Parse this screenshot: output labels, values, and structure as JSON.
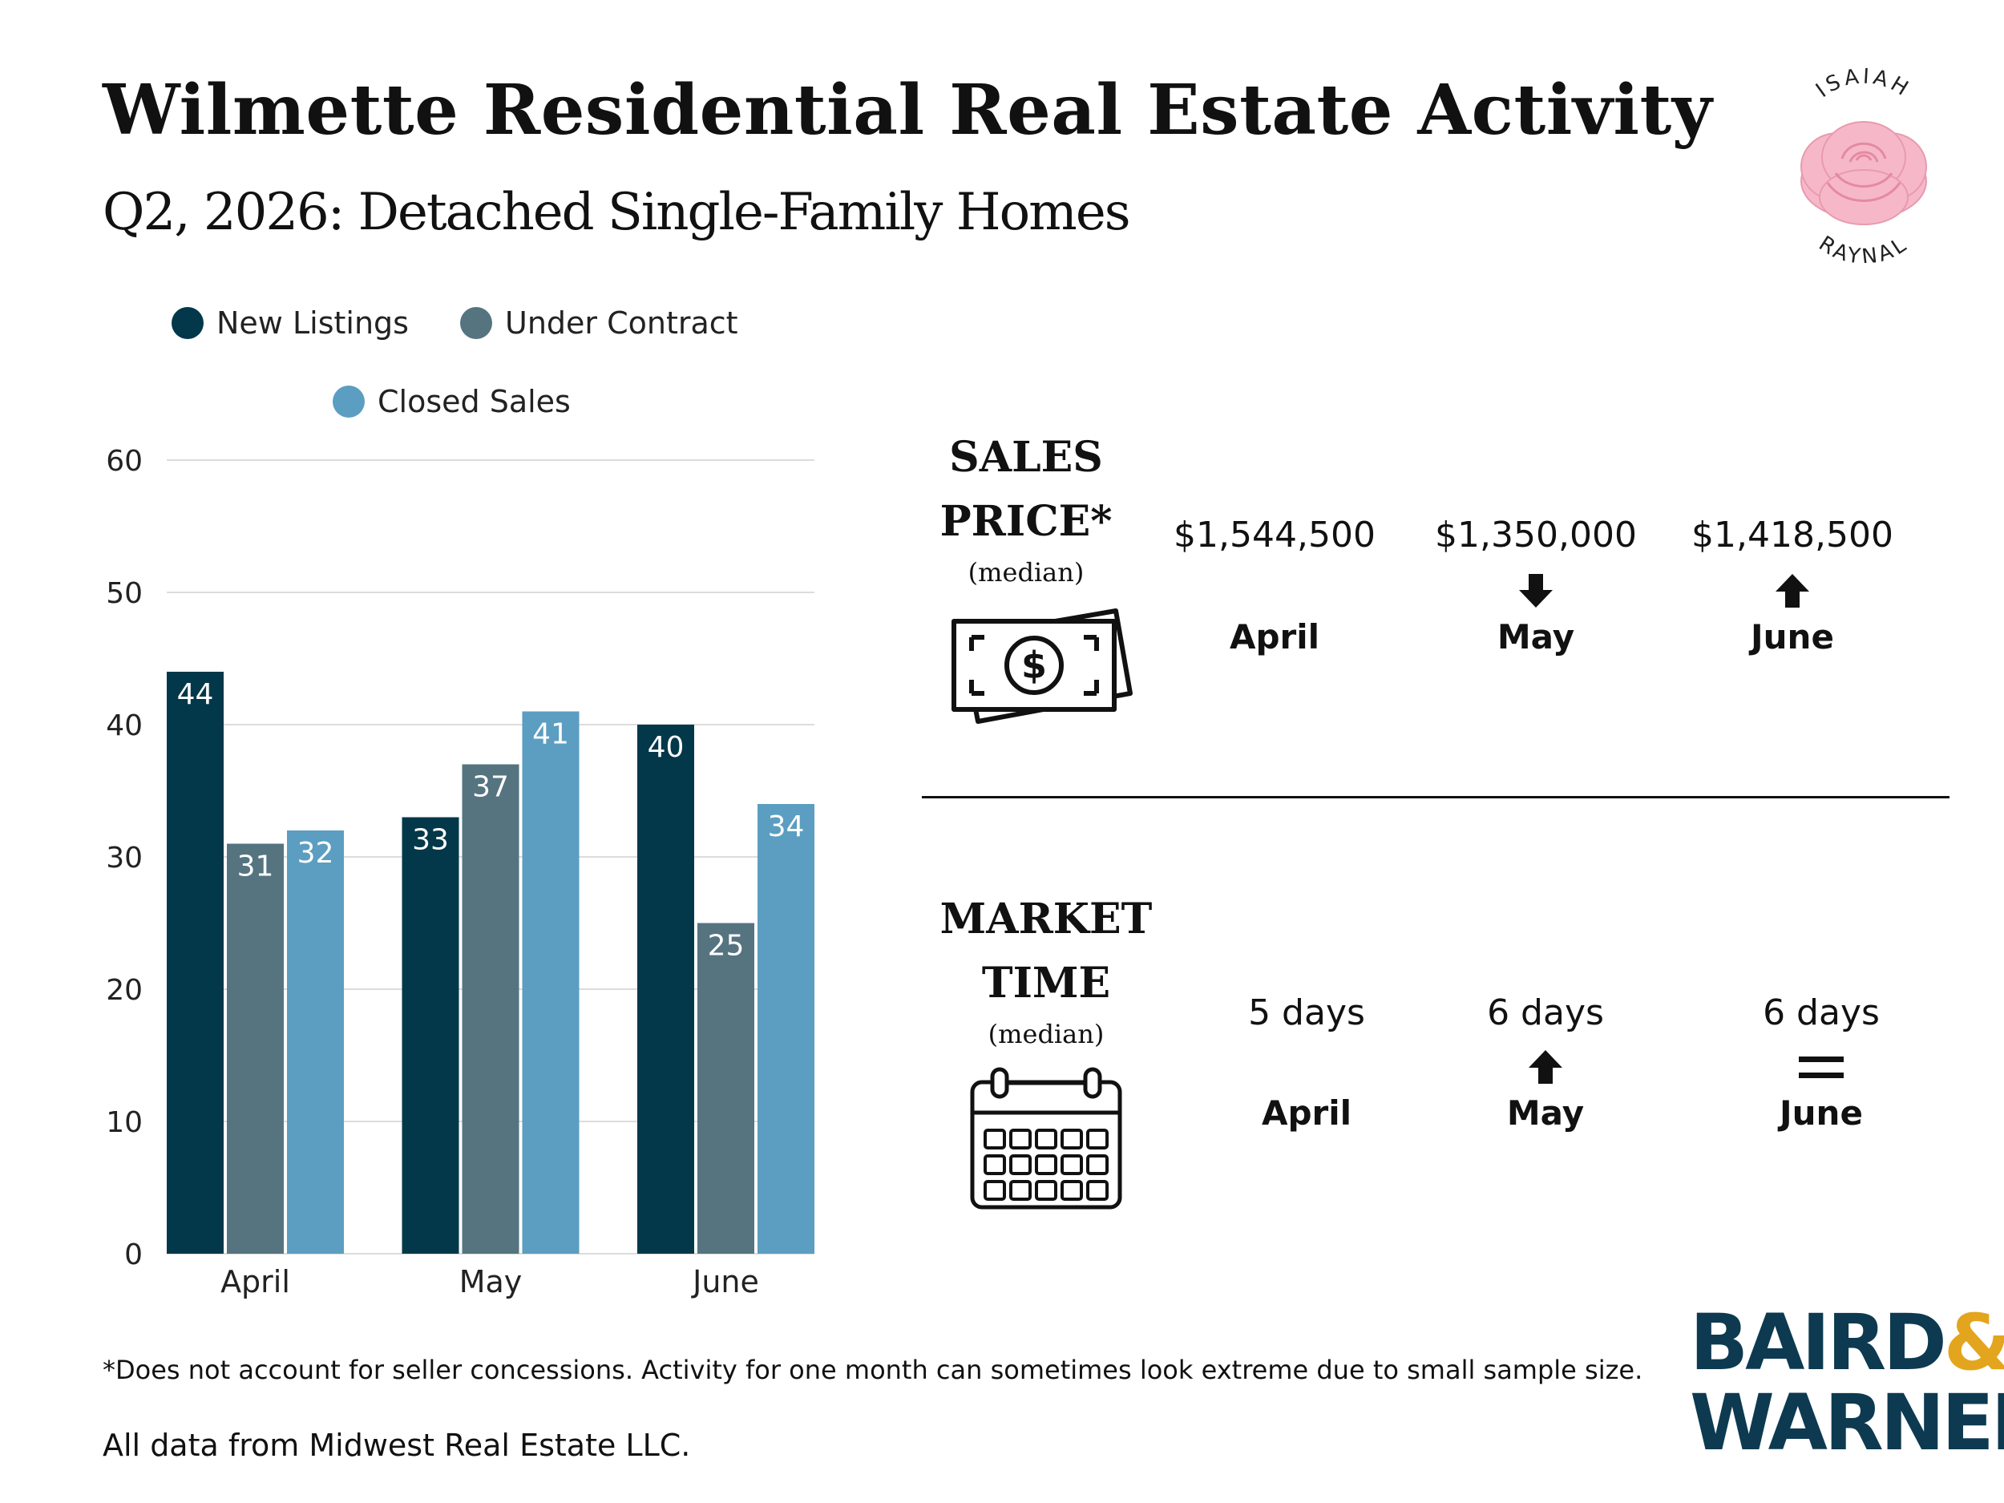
{
  "header": {
    "title": "Wilmette Residential Real Estate Activity",
    "subtitle": "Q2, 2026: Detached Single-Family Homes"
  },
  "brand_logo": {
    "top_text": "ISAIAH",
    "bottom_text": "RAYNAL",
    "rose_color": "#f6b8c8"
  },
  "chart_data": {
    "type": "bar",
    "categories": [
      "April",
      "May",
      "June"
    ],
    "series": [
      {
        "name": "New Listings",
        "values": [
          44,
          33,
          40
        ],
        "color": "#03384a"
      },
      {
        "name": "Under Contract",
        "values": [
          31,
          37,
          25
        ],
        "color": "#557480"
      },
      {
        "name": "Closed Sales",
        "values": [
          32,
          41,
          34
        ],
        "color": "#5b9ec1"
      }
    ],
    "ylim": [
      0,
      60
    ],
    "yticks": [
      0,
      10,
      20,
      30,
      40,
      50,
      60
    ],
    "grid": true,
    "legend": "top",
    "data_labels": true
  },
  "sales_price": {
    "heading_line1": "SALES",
    "heading_line2": "PRICE*",
    "sub": "(median)",
    "icon": "money-icon",
    "months": [
      {
        "value": "$1,544,500",
        "month": "April",
        "trend": "none"
      },
      {
        "value": "$1,350,000",
        "month": "May",
        "trend": "down"
      },
      {
        "value": "$1,418,500",
        "month": "June",
        "trend": "up"
      }
    ]
  },
  "market_time": {
    "heading_line1": "MARKET",
    "heading_line2": "TIME",
    "sub": "(median)",
    "icon": "calendar-icon",
    "months": [
      {
        "value": "5 days",
        "month": "April",
        "trend": "none"
      },
      {
        "value": "6 days",
        "month": "May",
        "trend": "up"
      },
      {
        "value": "6 days",
        "month": "June",
        "trend": "equal"
      }
    ]
  },
  "footer": {
    "footnote": "*Does not account for seller concessions. Activity for one month can sometimes look extreme due to small sample size.",
    "source": "All data from Midwest Real Estate LLC."
  },
  "company_logo": {
    "line1": "BAIRD",
    "amp": "&",
    "line2": "WARNER",
    "primary_color": "#0d3a50",
    "accent_color": "#e3a51e"
  }
}
